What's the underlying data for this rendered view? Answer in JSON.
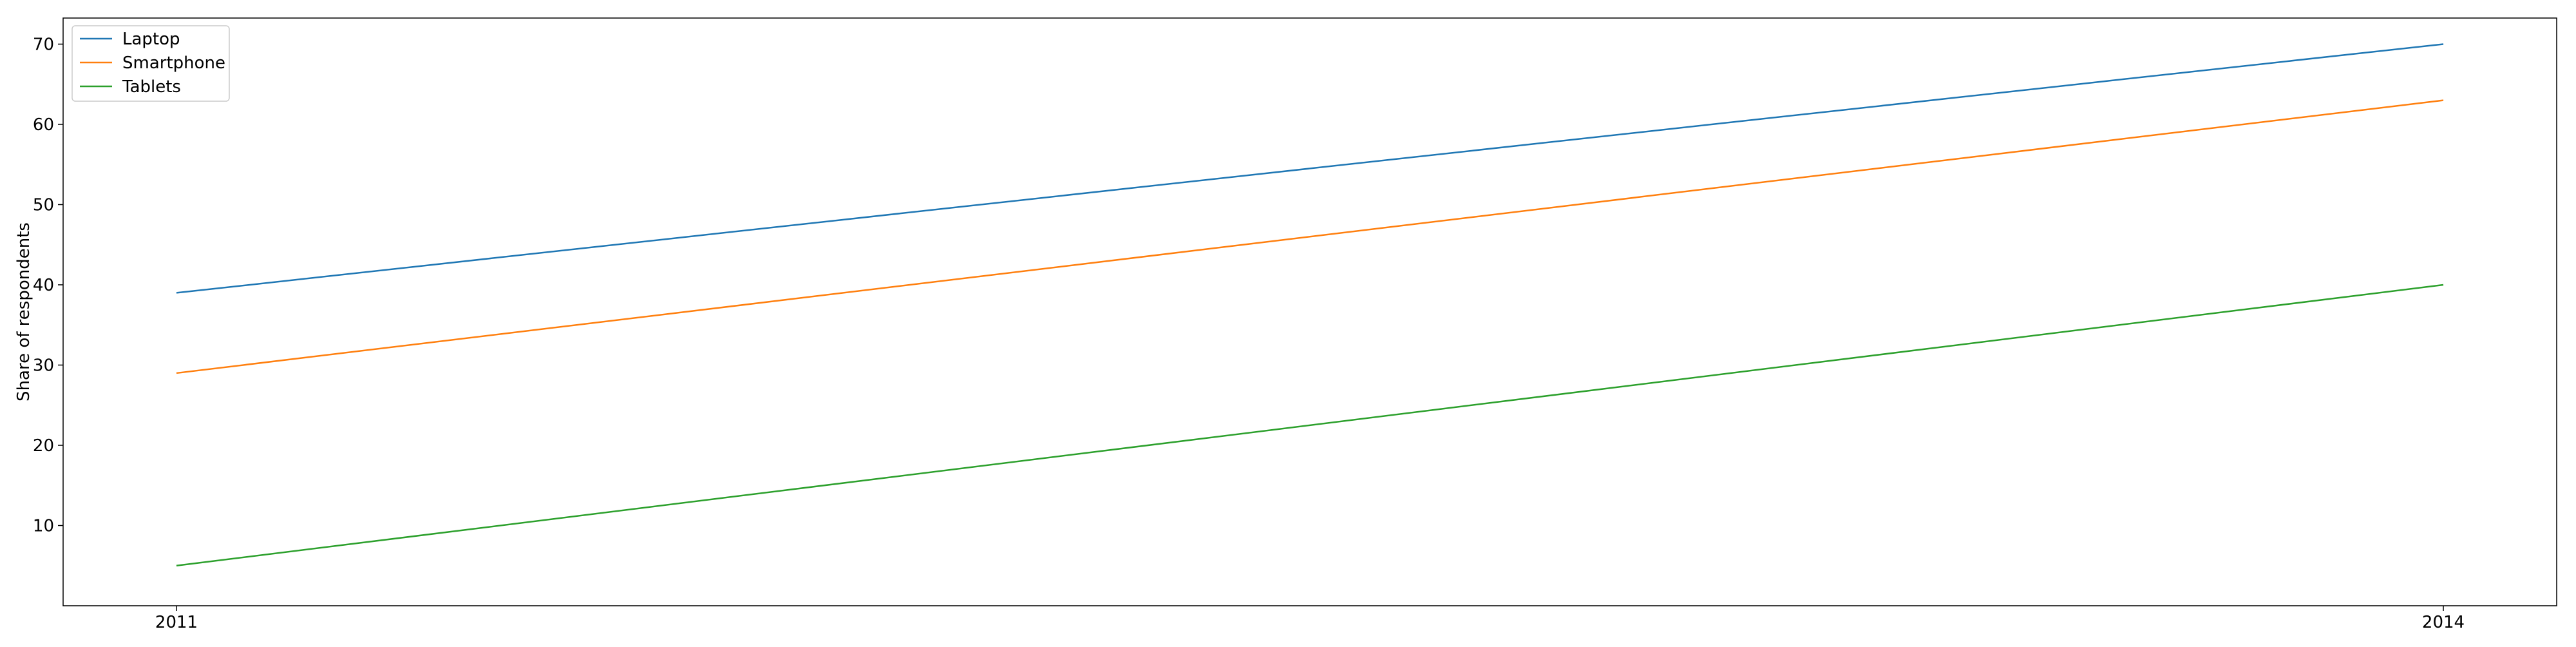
{
  "chart_data": {
    "type": "line",
    "title": "",
    "xlabel": "",
    "ylabel": "Share of respondents",
    "categories": [
      "2011",
      "2014"
    ],
    "x": [
      2011,
      2014
    ],
    "xlim": [
      2010.85,
      2014.15
    ],
    "ylim": [
      0,
      73.25
    ],
    "yticks": [
      10,
      20,
      30,
      40,
      50,
      60,
      70
    ],
    "grid": false,
    "legend_position": "upper-left",
    "series": [
      {
        "name": "Laptop",
        "values": [
          39,
          70
        ],
        "color": "#1f77b4"
      },
      {
        "name": "Smartphone",
        "values": [
          29,
          63
        ],
        "color": "#ff7f0e"
      },
      {
        "name": "Tablets",
        "values": [
          5,
          40
        ],
        "color": "#2ca02c"
      }
    ]
  }
}
